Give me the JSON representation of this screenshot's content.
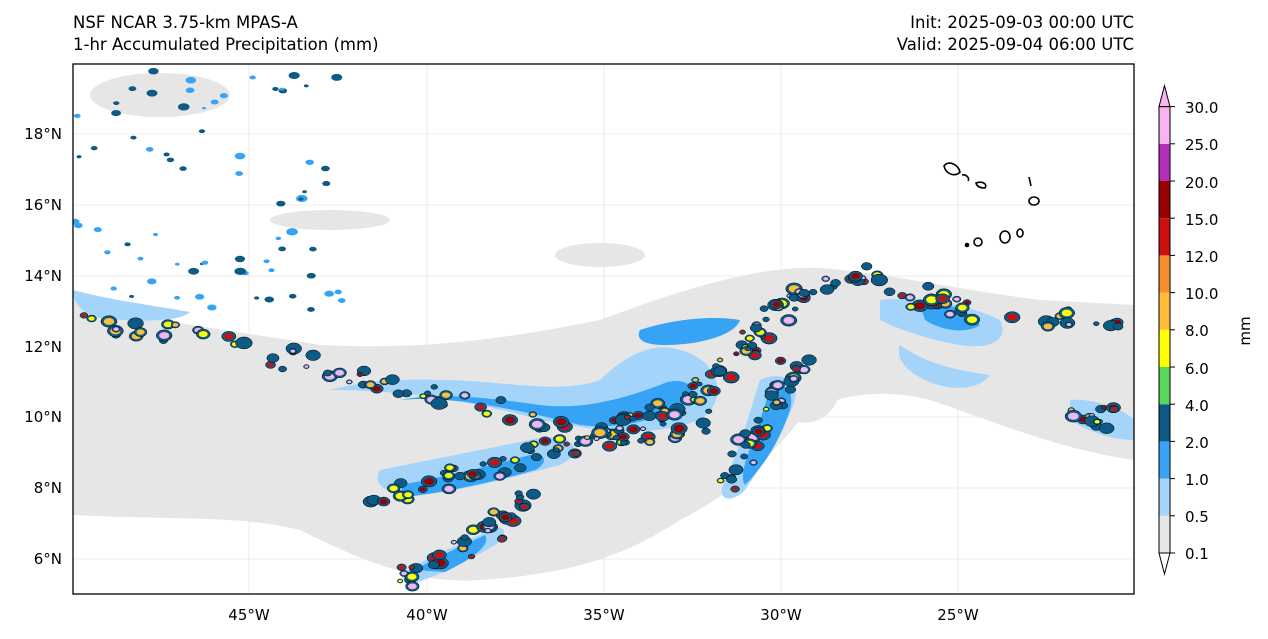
{
  "header": {
    "model": "NSF NCAR 3.75-km MPAS-A",
    "field": "1-hr Accumulated Precipitation (mm)",
    "init": "Init: 2025-09-03 00:00 UTC",
    "valid": "Valid: 2025-09-04 06:00 UTC"
  },
  "axes": {
    "lon_ticks": [
      "45°W",
      "40°W",
      "35°W",
      "30°W",
      "25°W"
    ],
    "lat_ticks": [
      "18°N",
      "16°N",
      "14°N",
      "12°N",
      "10°N",
      "8°N",
      "6°N"
    ]
  },
  "colorbar": {
    "unit": "mm",
    "levels": [
      "0.1",
      "0.5",
      "1.0",
      "2.0",
      "4.0",
      "6.0",
      "8.0",
      "10.0",
      "12.0",
      "15.0",
      "20.0",
      "25.0",
      "30.0"
    ],
    "colors": [
      "#e6e6e6",
      "#a5d4fb",
      "#36a3f4",
      "#0d5a84",
      "#57d85d",
      "#ffff00",
      "#ffbd3a",
      "#f58f2d",
      "#cc1010",
      "#990000",
      "#b42fb9",
      "#f6b5ee"
    ]
  }
}
